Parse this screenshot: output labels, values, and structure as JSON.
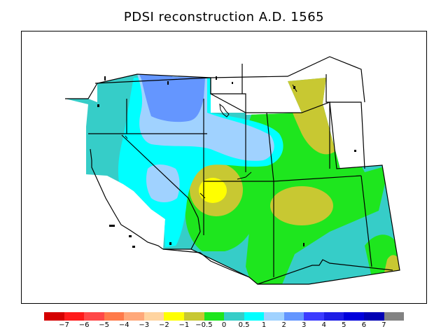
{
  "title": "PDSI reconstruction A.D. 1565",
  "legend": {
    "colors": [
      "#d40000",
      "#ff1a1a",
      "#ff4848",
      "#ff7a4a",
      "#ffa87a",
      "#ffd4a0",
      "#ffff00",
      "#c8c832",
      "#1ee61e",
      "#36cdc8",
      "#00ffff",
      "#a0d2ff",
      "#6496ff",
      "#3c3cff",
      "#1e1ee6",
      "#0000dc",
      "#0000b4",
      "#828282"
    ],
    "labels": [
      "−7",
      "−6",
      "−5",
      "−4",
      "−3",
      "−2",
      "−1",
      "−0.5",
      "0",
      "0.5",
      "1",
      "2",
      "3",
      "4",
      "5",
      "6",
      "7"
    ]
  }
}
